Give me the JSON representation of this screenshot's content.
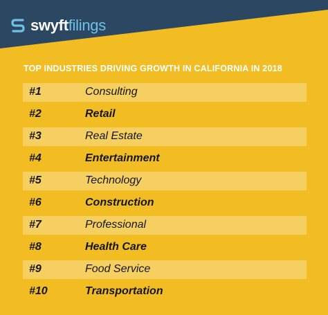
{
  "logo": {
    "word1": "swyft",
    "word2": "filings"
  },
  "heading": "TOP INDUSTRIES DRIVING GROWTH IN CALIFORNIA IN 2018",
  "colors": {
    "background": "#f2bd22",
    "banner": "#2c4761",
    "logo_accent": "#6ec1e4",
    "heading_text": "#ffffff",
    "row_text": "#141414"
  },
  "icons": {
    "logo": "swyft-logo-icon"
  },
  "rows": [
    {
      "rank": "#1",
      "name": "Consulting"
    },
    {
      "rank": "#2",
      "name": "Retail"
    },
    {
      "rank": "#3",
      "name": "Real Estate"
    },
    {
      "rank": "#4",
      "name": "Entertainment"
    },
    {
      "rank": "#5",
      "name": "Technology"
    },
    {
      "rank": "#6",
      "name": "Construction"
    },
    {
      "rank": "#7",
      "name": "Professional"
    },
    {
      "rank": "#8",
      "name": "Health Care"
    },
    {
      "rank": "#9",
      "name": "Food Service"
    },
    {
      "rank": "#10",
      "name": "Transportation"
    }
  ]
}
